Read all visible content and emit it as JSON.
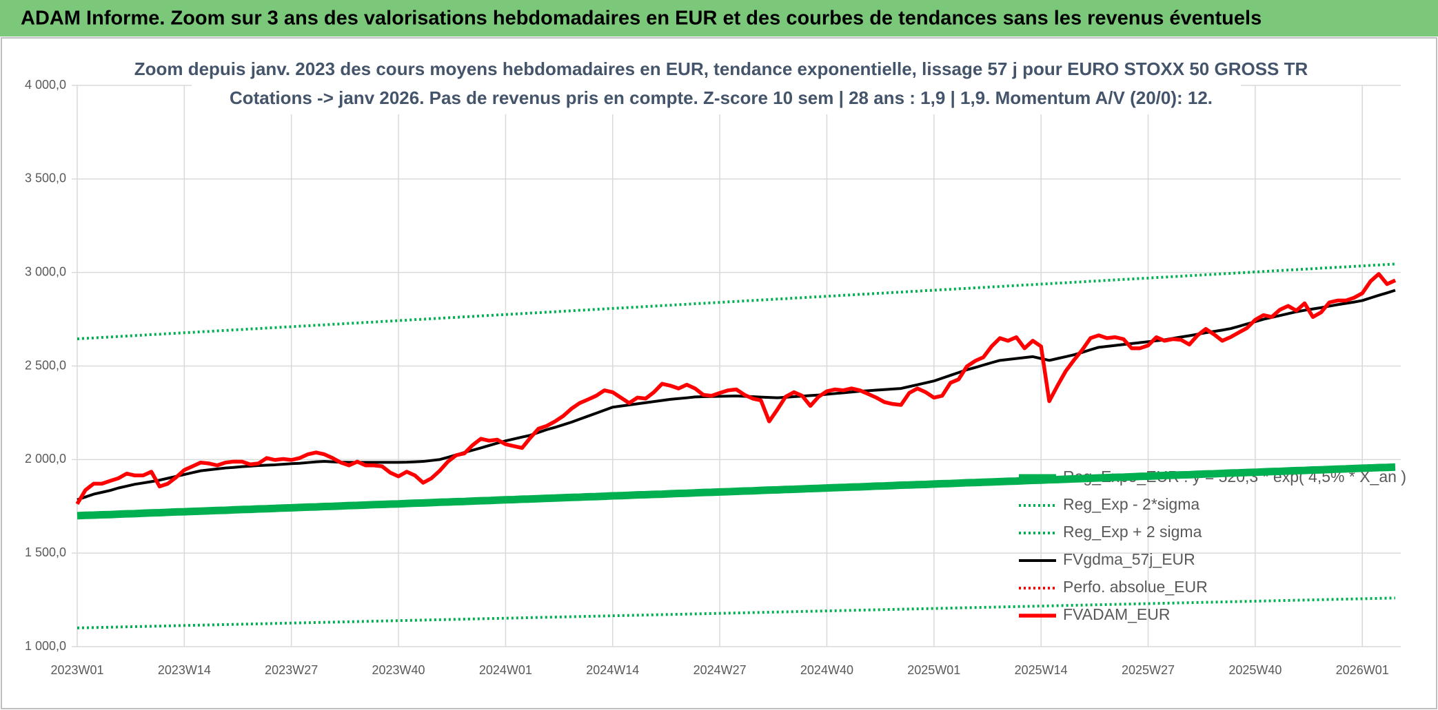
{
  "header": {
    "title": "ADAM Informe. Zoom sur 3 ans des valorisations hebdomadaires en EUR et des courbes de tendances sans les revenus éventuels"
  },
  "chart_data": {
    "type": "line",
    "title": "Zoom depuis janv. 2023 des cours moyens hebdomadaires en EUR, tendance exponentielle, lissage 57 j pour EURO STOXX 50 GROSS TR",
    "subtitle": "Cotations -> janv 2026. Pas de revenus pris en compte. Z-score 10 sem | 28 ans : 1,9 | 1,9. Momentum A/V (20/0): 12.",
    "categories": [
      "2023W01",
      null,
      null,
      null,
      null,
      null,
      null,
      null,
      null,
      null,
      null,
      null,
      null,
      "2023W14",
      null,
      null,
      null,
      null,
      null,
      null,
      null,
      null,
      null,
      null,
      null,
      null,
      "2023W27",
      null,
      null,
      null,
      null,
      null,
      null,
      null,
      null,
      null,
      null,
      null,
      null,
      "2023W40",
      null,
      null,
      null,
      null,
      null,
      null,
      null,
      null,
      null,
      null,
      null,
      null,
      "2024W01",
      null,
      null,
      null,
      null,
      null,
      null,
      null,
      null,
      null,
      null,
      null,
      null,
      "2024W14",
      null,
      null,
      null,
      null,
      null,
      null,
      null,
      null,
      null,
      null,
      null,
      null,
      "2024W27",
      null,
      null,
      null,
      null,
      null,
      null,
      null,
      null,
      null,
      null,
      null,
      null,
      "2024W40",
      null,
      null,
      null,
      null,
      null,
      null,
      null,
      null,
      null,
      null,
      null,
      null,
      "2025W01",
      null,
      null,
      null,
      null,
      null,
      null,
      null,
      null,
      null,
      null,
      null,
      null,
      "2025W14",
      null,
      null,
      null,
      null,
      null,
      null,
      null,
      null,
      null,
      null,
      null,
      null,
      "2025W27",
      null,
      null,
      null,
      null,
      null,
      null,
      null,
      null,
      null,
      null,
      null,
      null,
      "2025W40",
      null,
      null,
      null,
      null,
      null,
      null,
      null,
      null,
      null,
      null,
      null,
      null,
      "2026W01",
      null,
      null,
      null,
      null
    ],
    "ylim": [
      1000,
      4000
    ],
    "yticks": [
      {
        "value": 1000,
        "label": "1 000,0"
      },
      {
        "value": 1500,
        "label": "1 500,0"
      },
      {
        "value": 2000,
        "label": "2 000,0"
      },
      {
        "value": 2500,
        "label": "2 500,0"
      },
      {
        "value": 3000,
        "label": "3 000,0"
      },
      {
        "value": 3500,
        "label": "3 500,0"
      },
      {
        "value": 4000,
        "label": "4 000,0"
      }
    ],
    "grid": true,
    "legend": "lower right",
    "series": [
      {
        "name": "Reg_Expo_EUR : y = 520,3 * exp( 4,5% * X_an )",
        "color": "#00b050",
        "line_style": "heavy",
        "values": [
          1700,
          1702,
          1703,
          1705,
          1706,
          1708,
          1710,
          1711,
          1713,
          1715,
          1716,
          1718,
          1720,
          1721,
          1723,
          1724,
          1726,
          1728,
          1729,
          1731,
          1733,
          1734,
          1736,
          1737,
          1739,
          1741,
          1742,
          1744,
          1746,
          1747,
          1749,
          1750,
          1752,
          1754,
          1755,
          1757,
          1759,
          1760,
          1762,
          1763,
          1765,
          1767,
          1768,
          1770,
          1772,
          1773,
          1775,
          1776,
          1778,
          1780,
          1781,
          1783,
          1785,
          1786,
          1788,
          1789,
          1791,
          1793,
          1794,
          1796,
          1798,
          1799,
          1801,
          1802,
          1804,
          1806,
          1807,
          1809,
          1811,
          1812,
          1814,
          1815,
          1817,
          1819,
          1820,
          1822,
          1824,
          1825,
          1827,
          1828,
          1830,
          1832,
          1833,
          1835,
          1837,
          1838,
          1840,
          1841,
          1843,
          1845,
          1846,
          1848,
          1850,
          1851,
          1853,
          1854,
          1856,
          1858,
          1859,
          1861,
          1863,
          1864,
          1866,
          1867,
          1869,
          1871,
          1872,
          1874,
          1876,
          1877,
          1879,
          1880,
          1882,
          1884,
          1885,
          1887,
          1889,
          1890,
          1892,
          1893,
          1895,
          1897,
          1898,
          1900,
          1902,
          1903,
          1905,
          1906,
          1908,
          1910,
          1911,
          1913,
          1915,
          1916,
          1918,
          1919,
          1921,
          1923,
          1924,
          1926,
          1928,
          1929,
          1931,
          1932,
          1934,
          1936,
          1937,
          1939,
          1941,
          1942,
          1944,
          1945,
          1947,
          1949,
          1950,
          1952,
          1954,
          1955,
          1957,
          1958,
          1960
        ]
      },
      {
        "name": "Reg_Exp - 2*sigma",
        "color": "#00b050",
        "line_style": "dotted",
        "values": [
          1100,
          1101,
          1102,
          1103,
          1104,
          1105,
          1106,
          1107,
          1108,
          1109,
          1110,
          1111,
          1112,
          1113,
          1114,
          1115,
          1116,
          1117,
          1118,
          1119,
          1120,
          1121,
          1122,
          1123,
          1124,
          1125,
          1126,
          1127,
          1128,
          1129,
          1130,
          1131,
          1132,
          1133,
          1134,
          1135,
          1136,
          1137,
          1138,
          1139,
          1140,
          1141,
          1142,
          1143,
          1144,
          1145,
          1146,
          1147,
          1148,
          1149,
          1150,
          1151,
          1152,
          1153,
          1154,
          1155,
          1156,
          1157,
          1158,
          1159,
          1160,
          1161,
          1162,
          1163,
          1164,
          1165,
          1166,
          1167,
          1168,
          1169,
          1170,
          1171,
          1172,
          1173,
          1174,
          1175,
          1176,
          1177,
          1178,
          1179,
          1180,
          1181,
          1182,
          1183,
          1184,
          1185,
          1186,
          1187,
          1188,
          1189,
          1190,
          1191,
          1192,
          1193,
          1194,
          1195,
          1196,
          1197,
          1198,
          1199,
          1200,
          1201,
          1202,
          1203,
          1204,
          1205,
          1206,
          1207,
          1208,
          1209,
          1210,
          1211,
          1212,
          1213,
          1214,
          1215,
          1216,
          1217,
          1218,
          1219,
          1220,
          1221,
          1222,
          1223,
          1224,
          1225,
          1226,
          1227,
          1228,
          1229,
          1230,
          1231,
          1232,
          1233,
          1234,
          1235,
          1236,
          1237,
          1238,
          1239,
          1240,
          1241,
          1242,
          1243,
          1244,
          1245,
          1246,
          1247,
          1248,
          1249,
          1250,
          1251,
          1252,
          1253,
          1254,
          1255,
          1256,
          1257,
          1258,
          1259,
          1260
        ]
      },
      {
        "name": "Reg_Exp + 2 sigma",
        "color": "#00b050",
        "line_style": "dotted",
        "values": [
          2645,
          2648,
          2650,
          2653,
          2655,
          2658,
          2660,
          2663,
          2665,
          2668,
          2670,
          2673,
          2675,
          2678,
          2680,
          2683,
          2685,
          2688,
          2690,
          2693,
          2695,
          2698,
          2700,
          2703,
          2705,
          2708,
          2710,
          2713,
          2715,
          2718,
          2720,
          2723,
          2725,
          2728,
          2730,
          2733,
          2735,
          2738,
          2740,
          2743,
          2745,
          2748,
          2750,
          2753,
          2755,
          2758,
          2760,
          2763,
          2765,
          2768,
          2770,
          2773,
          2775,
          2778,
          2780,
          2783,
          2785,
          2788,
          2790,
          2793,
          2795,
          2798,
          2800,
          2803,
          2805,
          2808,
          2810,
          2813,
          2815,
          2818,
          2820,
          2823,
          2825,
          2828,
          2830,
          2833,
          2835,
          2838,
          2840,
          2843,
          2845,
          2848,
          2850,
          2853,
          2855,
          2858,
          2860,
          2863,
          2865,
          2868,
          2870,
          2873,
          2875,
          2878,
          2880,
          2883,
          2885,
          2888,
          2890,
          2893,
          2895,
          2898,
          2900,
          2903,
          2905,
          2908,
          2910,
          2913,
          2915,
          2918,
          2920,
          2923,
          2925,
          2928,
          2930,
          2933,
          2935,
          2938,
          2940,
          2943,
          2945,
          2948,
          2950,
          2953,
          2955,
          2958,
          2960,
          2963,
          2965,
          2968,
          2970,
          2973,
          2975,
          2978,
          2980,
          2983,
          2985,
          2988,
          2990,
          2993,
          2995,
          2998,
          3000,
          3003,
          3005,
          3008,
          3010,
          3013,
          3015,
          3018,
          3020,
          3023,
          3025,
          3028,
          3030,
          3033,
          3035,
          3038,
          3040,
          3043,
          3045
        ]
      },
      {
        "name": "FVgdma_57j_EUR",
        "color": "#000000",
        "line_style": "medium",
        "values": [
          1785,
          1800,
          1815,
          1825,
          1835,
          1848,
          1858,
          1868,
          1875,
          1882,
          1890,
          1900,
          1910,
          1920,
          1930,
          1940,
          1945,
          1950,
          1955,
          1958,
          1962,
          1965,
          1968,
          1970,
          1972,
          1975,
          1978,
          1980,
          1984,
          1988,
          1990,
          1988,
          1986,
          1985,
          1985,
          1985,
          1985,
          1985,
          1985,
          1985,
          1986,
          1988,
          1990,
          1995,
          2000,
          2012,
          2025,
          2038,
          2050,
          2062,
          2075,
          2088,
          2100,
          2110,
          2120,
          2130,
          2145,
          2160,
          2172,
          2186,
          2200,
          2216,
          2232,
          2248,
          2264,
          2280,
          2286,
          2292,
          2298,
          2304,
          2310,
          2316,
          2322,
          2326,
          2330,
          2335,
          2336,
          2337,
          2338,
          2339,
          2340,
          2338,
          2336,
          2334,
          2332,
          2330,
          2333,
          2336,
          2339,
          2342,
          2345,
          2349,
          2353,
          2357,
          2361,
          2365,
          2368,
          2371,
          2374,
          2377,
          2380,
          2390,
          2400,
          2410,
          2420,
          2435,
          2450,
          2465,
          2480,
          2492,
          2505,
          2518,
          2530,
          2535,
          2540,
          2545,
          2550,
          2540,
          2530,
          2540,
          2550,
          2560,
          2573,
          2587,
          2600,
          2605,
          2610,
          2615,
          2620,
          2625,
          2630,
          2635,
          2640,
          2648,
          2655,
          2662,
          2670,
          2678,
          2685,
          2692,
          2700,
          2712,
          2725,
          2737,
          2750,
          2760,
          2770,
          2780,
          2790,
          2798,
          2805,
          2812,
          2820,
          2828,
          2835,
          2842,
          2850,
          2864,
          2878,
          2891,
          2905
        ]
      },
      {
        "name": "Perfo. absolue_EUR",
        "color": "#ff0000",
        "line_style": "dotted",
        "values": [
          1763,
          1837,
          1871,
          1871,
          1886,
          1900,
          1925,
          1915,
          1915,
          1935,
          1856,
          1871,
          1905,
          1944,
          1964,
          1984,
          1979,
          1969,
          1984,
          1989,
          1989,
          1974,
          1979,
          2008,
          1998,
          2003,
          1998,
          2008,
          2028,
          2038,
          2028,
          2008,
          1984,
          1969,
          1989,
          1969,
          1969,
          1964,
          1930,
          1910,
          1935,
          1915,
          1876,
          1900,
          1940,
          1989,
          2023,
          2033,
          2077,
          2111,
          2101,
          2106,
          2082,
          2072,
          2062,
          2116,
          2165,
          2180,
          2204,
          2233,
          2272,
          2302,
          2321,
          2341,
          2370,
          2360,
          2331,
          2302,
          2331,
          2326,
          2360,
          2405,
          2395,
          2380,
          2400,
          2380,
          2346,
          2341,
          2356,
          2370,
          2375,
          2346,
          2326,
          2316,
          2204,
          2268,
          2336,
          2360,
          2341,
          2287,
          2336,
          2365,
          2375,
          2370,
          2380,
          2370,
          2351,
          2331,
          2307,
          2297,
          2292,
          2356,
          2380,
          2360,
          2331,
          2341,
          2410,
          2429,
          2498,
          2527,
          2547,
          2605,
          2649,
          2635,
          2654,
          2595,
          2635,
          2605,
          2312,
          2395,
          2473,
          2532,
          2586,
          2649,
          2664,
          2649,
          2654,
          2644,
          2595,
          2595,
          2610,
          2654,
          2635,
          2644,
          2640,
          2615,
          2664,
          2698,
          2669,
          2635,
          2654,
          2679,
          2703,
          2747,
          2772,
          2762,
          2801,
          2821,
          2796,
          2835,
          2762,
          2787,
          2840,
          2850,
          2850,
          2865,
          2889,
          2953,
          2992,
          2938,
          2958
        ]
      },
      {
        "name": "FVADAM_EUR",
        "color": "#ff0000",
        "line_style": "bold",
        "values": [
          1763,
          1837,
          1871,
          1871,
          1886,
          1900,
          1925,
          1915,
          1915,
          1935,
          1856,
          1871,
          1905,
          1944,
          1964,
          1984,
          1979,
          1969,
          1984,
          1989,
          1989,
          1974,
          1979,
          2008,
          1998,
          2003,
          1998,
          2008,
          2028,
          2038,
          2028,
          2008,
          1984,
          1969,
          1989,
          1969,
          1969,
          1964,
          1930,
          1910,
          1935,
          1915,
          1876,
          1900,
          1940,
          1989,
          2023,
          2033,
          2077,
          2111,
          2101,
          2106,
          2082,
          2072,
          2062,
          2116,
          2165,
          2180,
          2204,
          2233,
          2272,
          2302,
          2321,
          2341,
          2370,
          2360,
          2331,
          2302,
          2331,
          2326,
          2360,
          2405,
          2395,
          2380,
          2400,
          2380,
          2346,
          2341,
          2356,
          2370,
          2375,
          2346,
          2326,
          2316,
          2204,
          2268,
          2336,
          2360,
          2341,
          2287,
          2336,
          2365,
          2375,
          2370,
          2380,
          2370,
          2351,
          2331,
          2307,
          2297,
          2292,
          2356,
          2380,
          2360,
          2331,
          2341,
          2410,
          2429,
          2498,
          2527,
          2547,
          2605,
          2649,
          2635,
          2654,
          2595,
          2635,
          2605,
          2312,
          2395,
          2473,
          2532,
          2586,
          2649,
          2664,
          2649,
          2654,
          2644,
          2595,
          2595,
          2610,
          2654,
          2635,
          2644,
          2640,
          2615,
          2664,
          2698,
          2669,
          2635,
          2654,
          2679,
          2703,
          2747,
          2772,
          2762,
          2801,
          2821,
          2796,
          2835,
          2762,
          2787,
          2840,
          2850,
          2850,
          2865,
          2889,
          2953,
          2992,
          2938,
          2958
        ]
      }
    ]
  }
}
